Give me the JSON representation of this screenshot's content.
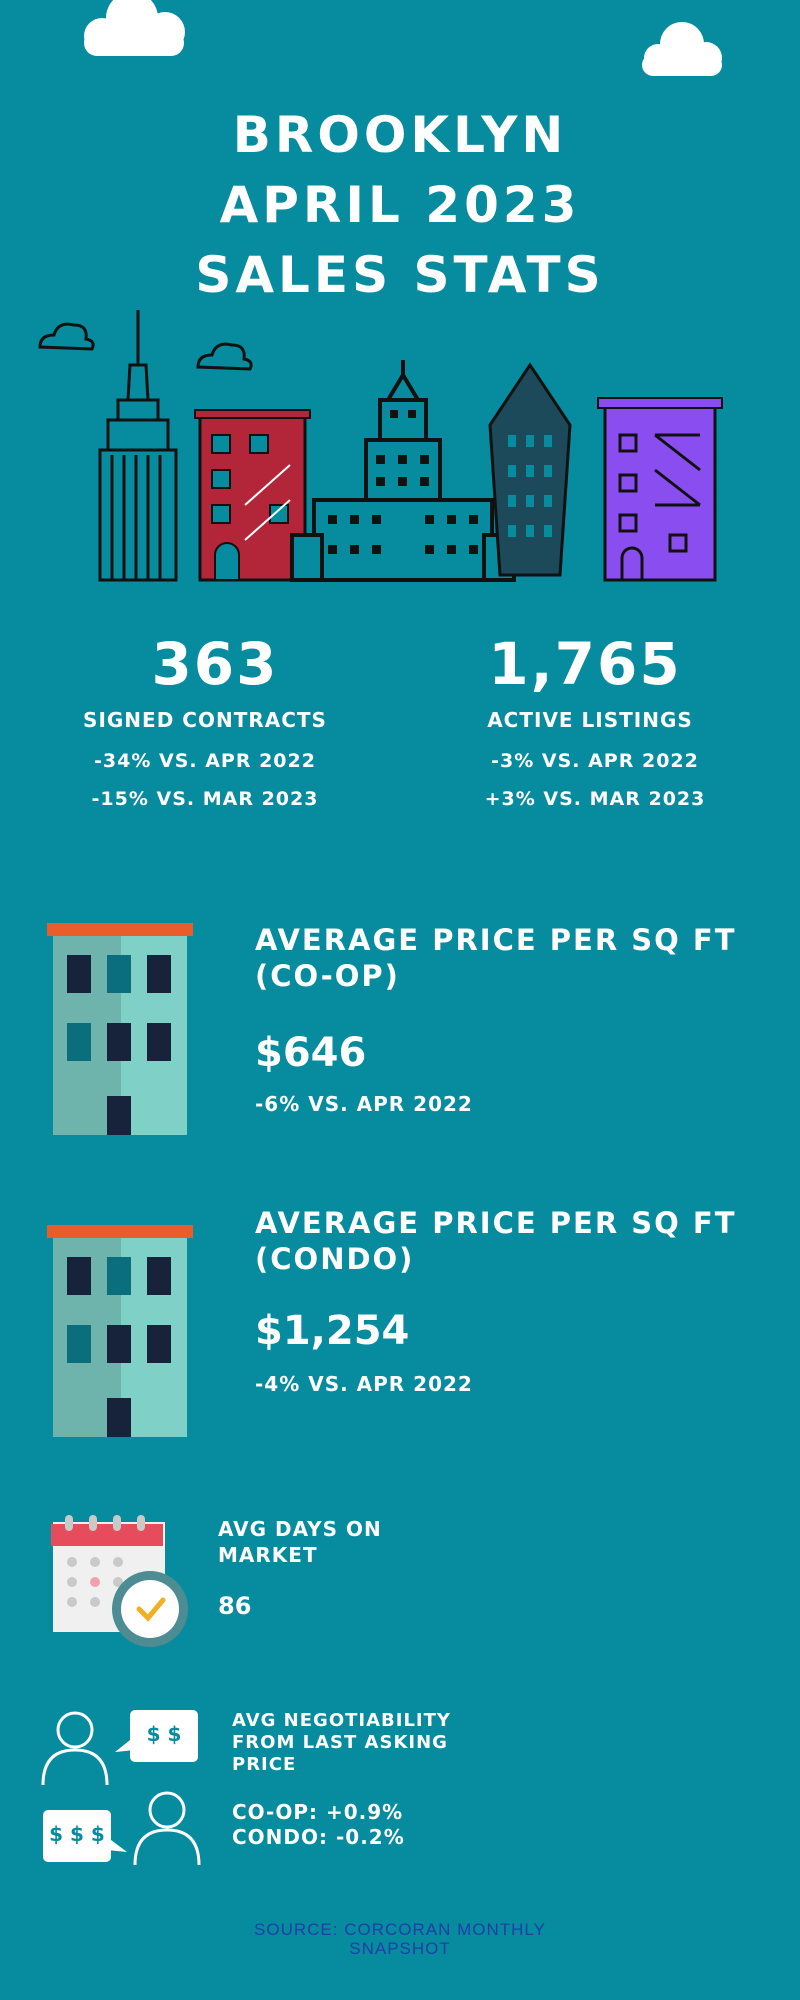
{
  "title_lines": [
    "BROOKLYN",
    "APRIL 2023",
    "SALES STATS"
  ],
  "stats": {
    "contracts": {
      "value": "363",
      "label": "SIGNED CONTRACTS",
      "change_yoy": "-34% VS. APR 2022",
      "change_mom": "-15% VS. MAR 2023"
    },
    "listings": {
      "value": "1,765",
      "label": "ACTIVE LISTINGS",
      "change_yoy": "-3% VS. APR 2022",
      "change_mom": "+3% VS. MAR 2023"
    }
  },
  "coop": {
    "heading_line1": "AVERAGE PRICE PER SQ FT",
    "heading_line2": "(CO-OP)",
    "value": "$646",
    "change": "-6% VS. APR 2022"
  },
  "condo": {
    "heading_line1": "AVERAGE PRICE PER SQ FT",
    "heading_line2": "(CONDO)",
    "value": "$1,254",
    "change": "-4% VS. APR 2022"
  },
  "days_on_market": {
    "heading_line1": "AVG DAYS ON",
    "heading_line2": "MARKET",
    "value": "86"
  },
  "negotiability": {
    "heading_line1": "AVG NEGOTIABILITY",
    "heading_line2": "FROM LAST ASKING",
    "heading_line3": "PRICE",
    "coop": "CO-OP: +0.9%",
    "condo": "CONDO: -0.2%",
    "bubble1": "$ $",
    "bubble2": "$ $ $"
  },
  "source": {
    "line1": "SOURCE: CORCORAN MONTHLY",
    "line2": "SNAPSHOT"
  },
  "colors": {
    "background": "#078b9e",
    "text": "#ffffff",
    "source_text": "#1f3fa8",
    "building_red": "#b3263a",
    "building_purple": "#8a4df0",
    "roof_orange": "#e95d2a"
  },
  "icons": [
    "cloud-icon",
    "skyline-illustration",
    "building-icon",
    "calendar-clock-icon",
    "negotiation-people-icon"
  ]
}
